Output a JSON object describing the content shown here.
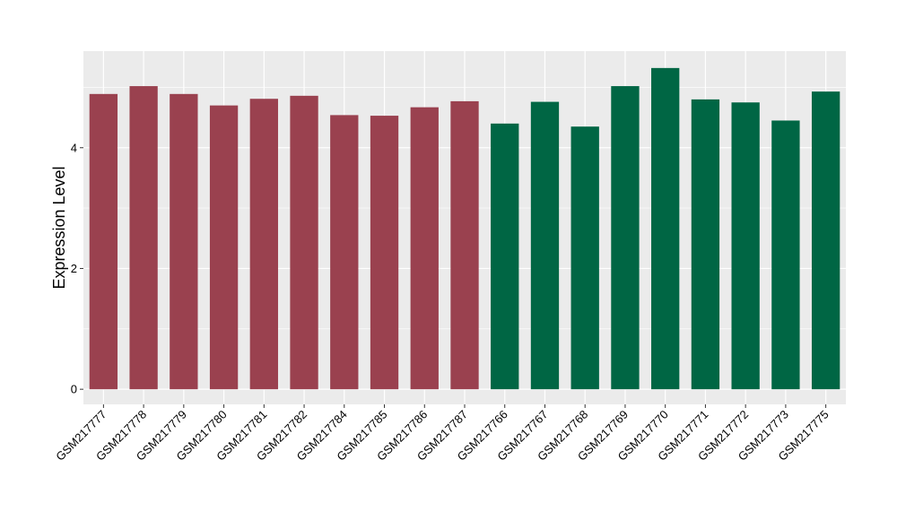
{
  "chart_data": {
    "type": "bar",
    "title": "",
    "xlabel": "",
    "ylabel": "Expression Level",
    "ylim": [
      -0.25,
      5.6
    ],
    "yticks": [
      0,
      2,
      4
    ],
    "grid": true,
    "legend": "none",
    "categories": [
      "GSM217777",
      "GSM217778",
      "GSM217779",
      "GSM217780",
      "GSM217781",
      "GSM217782",
      "GSM217784",
      "GSM217785",
      "GSM217786",
      "GSM217787",
      "GSM217766",
      "GSM217767",
      "GSM217768",
      "GSM217769",
      "GSM217770",
      "GSM217771",
      "GSM217772",
      "GSM217773",
      "GSM217775"
    ],
    "values": [
      4.89,
      5.02,
      4.89,
      4.7,
      4.81,
      4.86,
      4.54,
      4.53,
      4.67,
      4.77,
      4.4,
      4.76,
      4.35,
      5.02,
      5.32,
      4.8,
      4.75,
      4.45,
      4.93
    ],
    "group_index": [
      0,
      0,
      0,
      0,
      0,
      0,
      0,
      0,
      0,
      0,
      1,
      1,
      1,
      1,
      1,
      1,
      1,
      1,
      1
    ],
    "group_colors": [
      "#9a414f",
      "#006644"
    ],
    "panel_color": "#ebebeb",
    "grid_color": "#ffffff"
  }
}
